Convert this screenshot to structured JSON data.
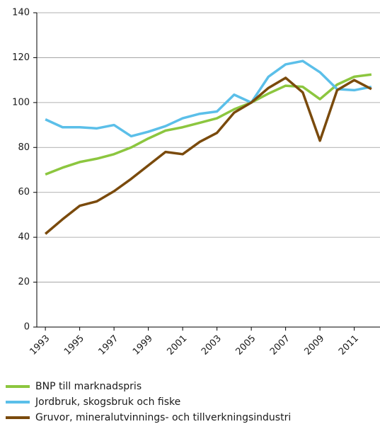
{
  "chart_data": {
    "type": "line",
    "x": [
      1993,
      1994,
      1995,
      1996,
      1997,
      1998,
      1999,
      2000,
      2001,
      2002,
      2003,
      2004,
      2005,
      2006,
      2007,
      2008,
      2009,
      2010,
      2011,
      2012
    ],
    "xlim": [
      1992.5,
      2012.5
    ],
    "xticks": [
      1993,
      1995,
      1997,
      1999,
      2001,
      2003,
      2005,
      2007,
      2009,
      2011
    ],
    "ylim": [
      0,
      140
    ],
    "yticks": [
      0,
      20,
      40,
      60,
      80,
      100,
      120,
      140
    ],
    "grid": true,
    "legend": "bottom",
    "series": [
      {
        "name": "BNP till marknadspris",
        "color": "#8cc63f",
        "values": [
          68,
          71,
          73.5,
          75,
          77,
          80,
          84,
          87.5,
          89,
          91,
          93,
          97,
          100,
          104,
          107.5,
          107,
          101.5,
          108,
          111.5,
          112.5
        ]
      },
      {
        "name": "Jordbruk, skogsbruk och fiske",
        "color": "#5bbfe9",
        "values": [
          92.5,
          89,
          89,
          88.5,
          90,
          85,
          87,
          89.5,
          93,
          95,
          96,
          103.5,
          100,
          111.5,
          117,
          118.5,
          113.5,
          106,
          105.5,
          107
        ]
      },
      {
        "name": "Gruvor, mineralutvinnings- och tillverkningsindustri",
        "color": "#7a4a0c",
        "values": [
          41.5,
          48,
          54,
          56,
          60.5,
          66,
          72,
          78,
          77,
          82.5,
          86.5,
          95.5,
          100,
          106.5,
          111,
          104.5,
          83,
          105.5,
          110,
          106
        ]
      }
    ]
  }
}
